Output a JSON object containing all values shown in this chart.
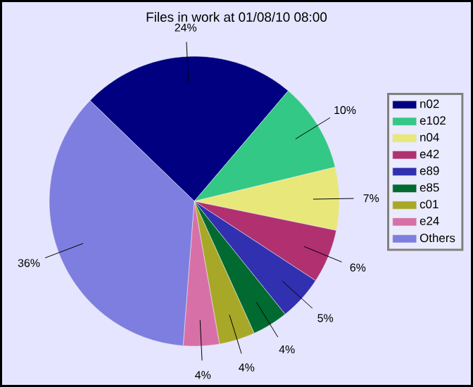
{
  "chart_data": {
    "type": "pie",
    "title": "Files in work at 01/08/10 08:00",
    "categories": [
      "n02",
      "e102",
      "n04",
      "e42",
      "e89",
      "e85",
      "c01",
      "e24",
      "Others"
    ],
    "values": [
      24,
      10,
      7,
      6,
      5,
      4,
      4,
      4,
      36
    ],
    "value_labels": [
      "24%",
      "10%",
      "7%",
      "6%",
      "5%",
      "4%",
      "4%",
      "4%",
      "36%"
    ],
    "colors": [
      "#000080",
      "#33c885",
      "#e8e87a",
      "#b03070",
      "#3030b0",
      "#006a30",
      "#a8a828",
      "#d870a8",
      "#7e7ee0"
    ],
    "legend": "right"
  }
}
